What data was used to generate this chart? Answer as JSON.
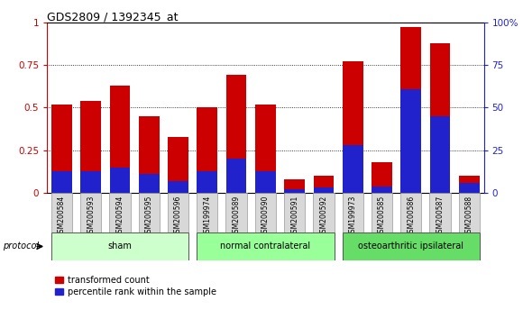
{
  "title": "GDS2809 / 1392345_at",
  "categories": [
    "GSM200584",
    "GSM200593",
    "GSM200594",
    "GSM200595",
    "GSM200596",
    "GSM199974",
    "GSM200589",
    "GSM200590",
    "GSM200591",
    "GSM200592",
    "GSM199973",
    "GSM200585",
    "GSM200586",
    "GSM200587",
    "GSM200588"
  ],
  "red_values": [
    0.52,
    0.54,
    0.63,
    0.45,
    0.33,
    0.5,
    0.69,
    0.52,
    0.08,
    0.1,
    0.77,
    0.18,
    0.97,
    0.88,
    0.1
  ],
  "blue_values_pct": [
    13,
    13,
    15,
    11,
    7,
    13,
    20,
    13,
    2,
    3,
    28,
    4,
    61,
    45,
    6
  ],
  "groups": [
    {
      "label": "sham",
      "start": 0,
      "end": 5,
      "color": "#ccffcc"
    },
    {
      "label": "normal contralateral",
      "start": 5,
      "end": 10,
      "color": "#99ff99"
    },
    {
      "label": "osteoarthritic ipsilateral",
      "start": 10,
      "end": 15,
      "color": "#66dd66"
    }
  ],
  "ylim_left": [
    0,
    1.0
  ],
  "ylim_right": [
    0,
    100
  ],
  "yticks_left": [
    0,
    0.25,
    0.5,
    0.75,
    1.0
  ],
  "ytick_labels_left": [
    "0",
    "0.25",
    "0.5",
    "0.75",
    "1"
  ],
  "yticks_right": [
    0,
    25,
    50,
    75,
    100
  ],
  "ytick_labels_right": [
    "0",
    "25",
    "50",
    "75",
    "100%"
  ],
  "bar_width": 0.7,
  "red_color": "#cc0000",
  "blue_color": "#2222cc",
  "legend_red": "transformed count",
  "legend_blue": "percentile rank within the sample",
  "protocol_label": "protocol"
}
